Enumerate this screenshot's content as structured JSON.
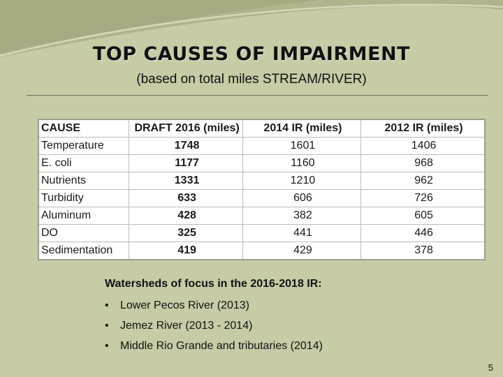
{
  "title": "TOP CAUSES OF IMPAIRMENT",
  "subtitle": "(based on total miles STREAM/RIVER)",
  "table": {
    "headers": [
      "CAUSE",
      "DRAFT 2016 (miles)",
      "2014 IR (miles)",
      "2012 IR (miles)"
    ],
    "rows": [
      [
        "Temperature",
        "1748",
        "1601",
        "1406"
      ],
      [
        "E. coli",
        "1177",
        "1160",
        "968"
      ],
      [
        "Nutrients",
        "1331",
        "1210",
        "962"
      ],
      [
        "Turbidity",
        "633",
        "606",
        "726"
      ],
      [
        "Aluminum",
        "428",
        "382",
        "605"
      ],
      [
        "DO",
        "325",
        "441",
        "446"
      ],
      [
        "Sedimentation",
        "419",
        "429",
        "378"
      ]
    ]
  },
  "focus": {
    "heading": "Watersheds of focus in the 2016-2018 IR:",
    "items": [
      "Lower Pecos River (2013)",
      "Jemez River (2013 - 2014)",
      "Middle Rio Grande and tributaries (2014)"
    ]
  },
  "page_number": "5"
}
